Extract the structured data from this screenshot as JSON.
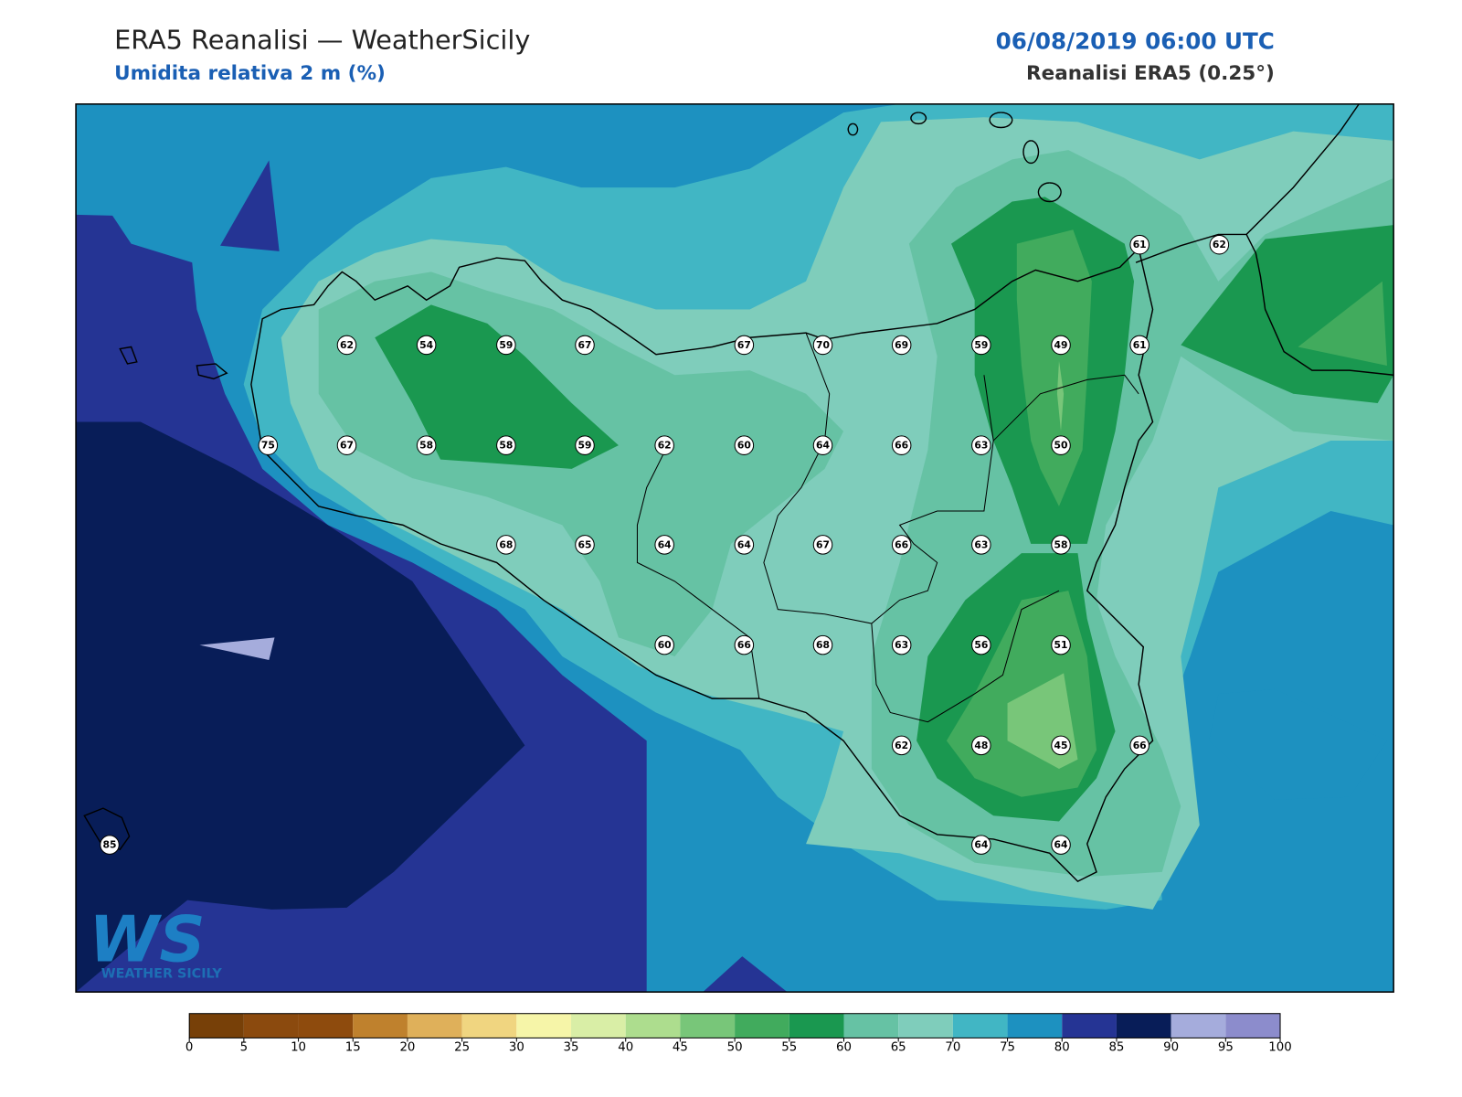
{
  "header": {
    "title": "ERA5 Reanalisi — WeatherSicily",
    "subtitle": "Umidita relativa 2 m (%)",
    "datetime": "06/08/2019 06:00 UTC",
    "source": "Reanalisi ERA5 (0.25°)"
  },
  "stations": {
    "values": [
      61,
      62,
      62,
      54,
      59,
      67,
      67,
      70,
      69,
      59,
      49,
      61,
      75,
      67,
      58,
      58,
      59,
      62,
      60,
      64,
      66,
      63,
      50,
      68,
      65,
      64,
      64,
      67,
      66,
      63,
      58,
      60,
      66,
      68,
      63,
      56,
      51,
      62,
      48,
      45,
      66,
      64,
      64,
      85
    ]
  },
  "colorbar": {
    "boundaries": [
      0,
      5,
      10,
      15,
      20,
      25,
      30,
      35,
      40,
      45,
      50,
      55,
      60,
      65,
      70,
      75,
      80,
      85,
      90,
      95,
      100
    ],
    "colors": [
      "#774008",
      "#8b4a0e",
      "#8e4b0d",
      "#bf812d",
      "#dfb05a",
      "#f0d580",
      "#f6f5a8",
      "#d9eea6",
      "#addd8e",
      "#78c679",
      "#41ab5d",
      "#1a9850",
      "#66c2a4",
      "#7fcdbb",
      "#41b6c4",
      "#1d91c0",
      "#253494",
      "#081d58",
      "#a5acdc",
      "#8c8ccc"
    ]
  },
  "logo": {
    "text": "WS",
    "subtext": "WEATHER SICILY"
  }
}
